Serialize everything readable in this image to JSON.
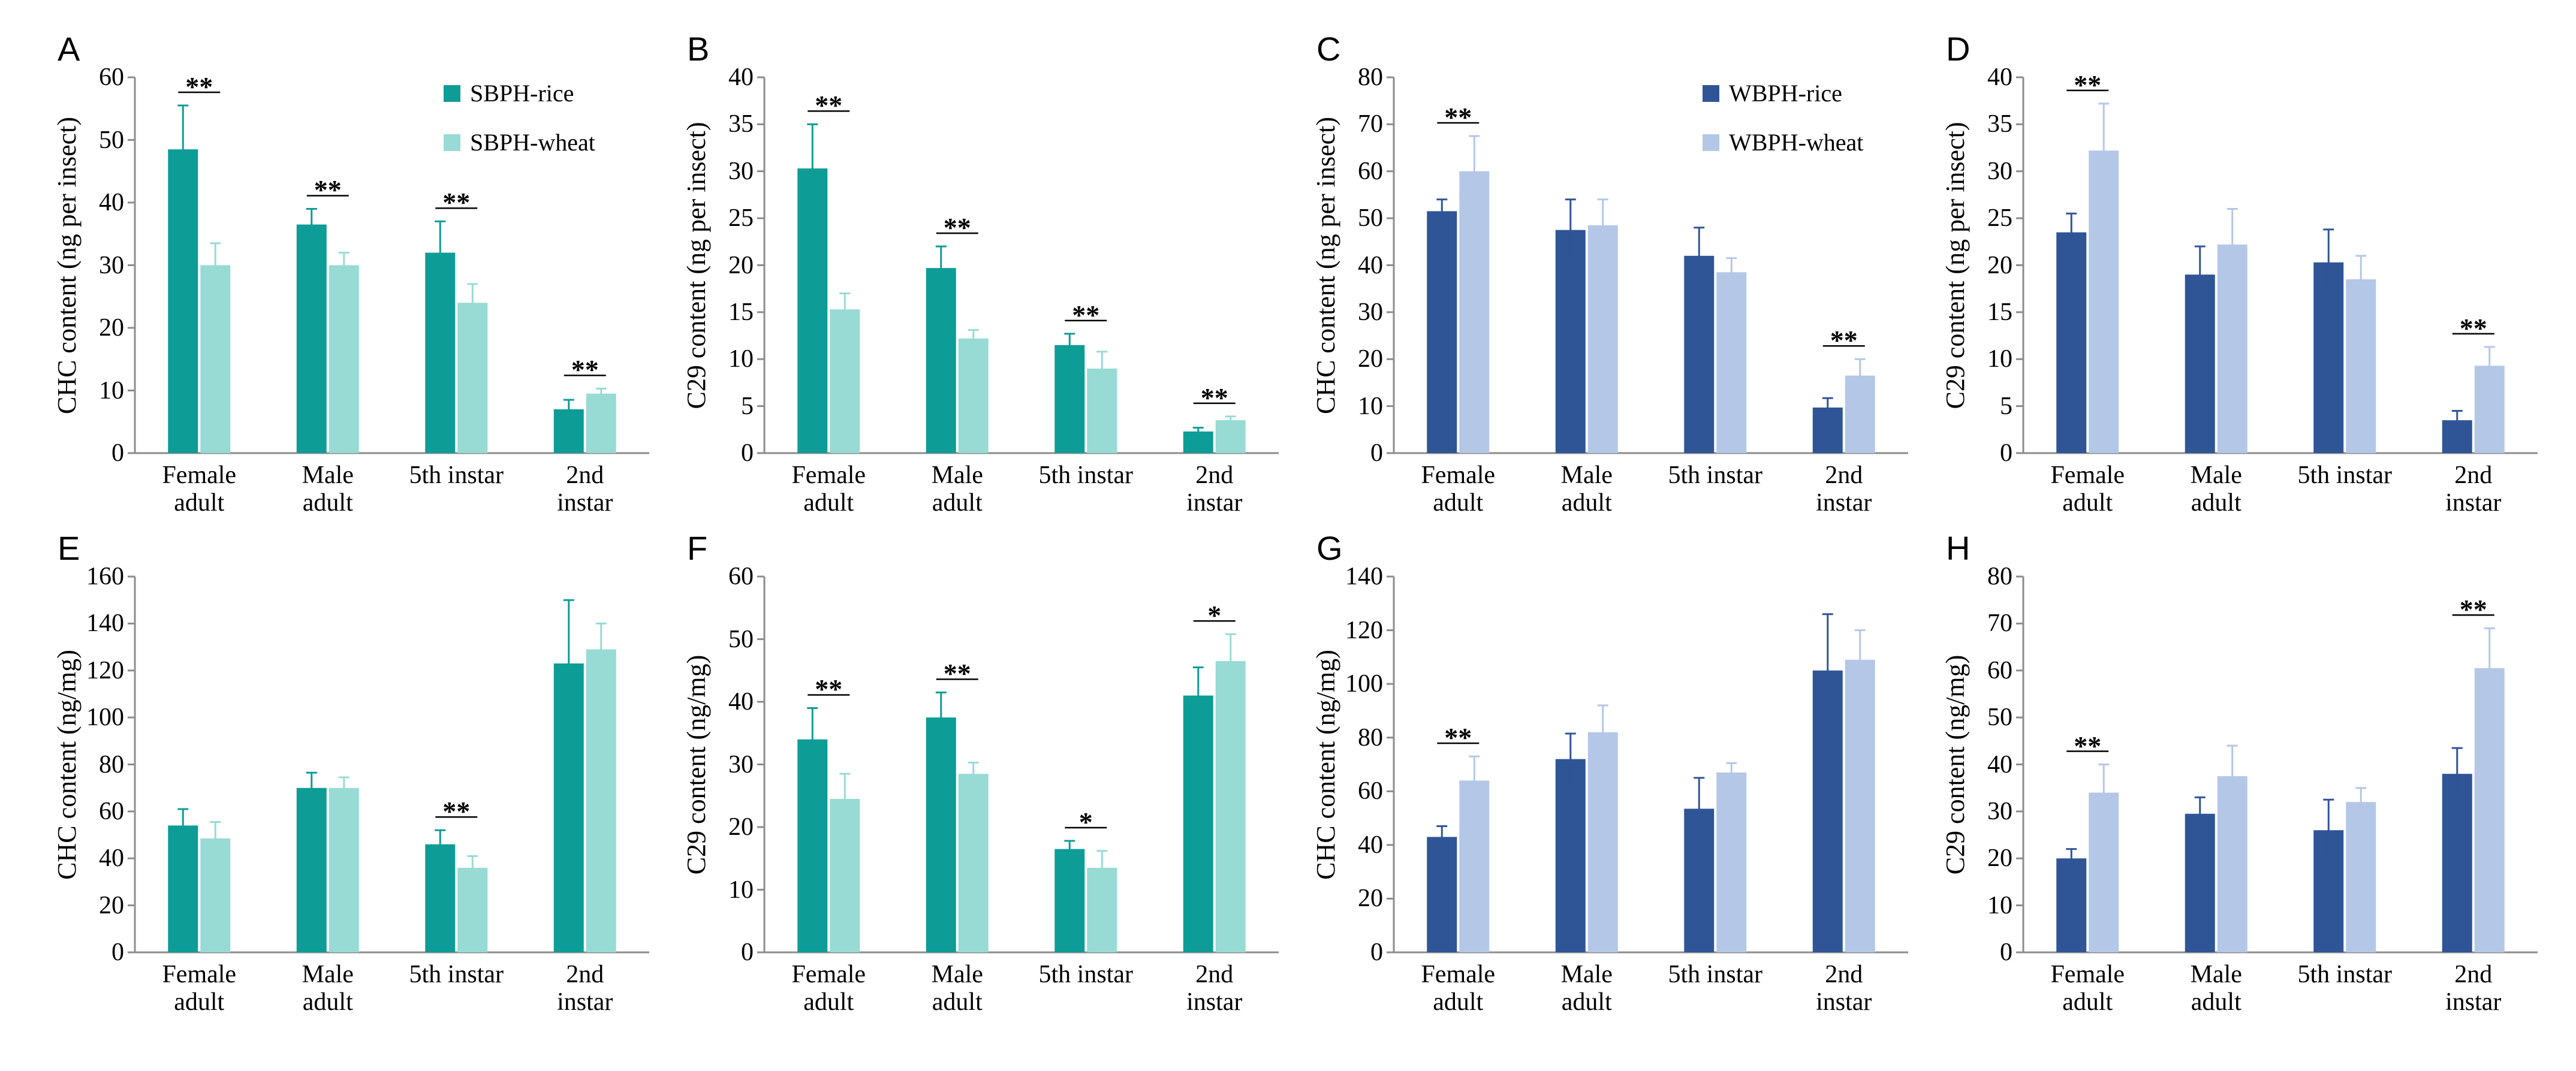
{
  "chart_data": [
    {
      "type": "bar",
      "label": "A",
      "ylabel": "CHC content (ng per insect)",
      "categories": [
        "Female\nadult",
        "Male\nadult",
        "5th instar",
        "2nd instar"
      ],
      "ylim": [
        0,
        60
      ],
      "yticks": [
        0,
        10,
        20,
        30,
        40,
        50,
        60
      ],
      "series": [
        {
          "name": "SBPH-rice",
          "color": "#0e9c97",
          "values": [
            48.5,
            36.5,
            32,
            7
          ],
          "errors": [
            7,
            2.5,
            5,
            1.5
          ]
        },
        {
          "name": "SBPH-wheat",
          "color": "#97dbd4",
          "values": [
            30,
            30,
            24,
            9.5
          ],
          "errors": [
            3.5,
            2,
            3,
            0.8
          ]
        }
      ],
      "annotations": [
        "**",
        "**",
        "**",
        "**"
      ]
    },
    {
      "type": "bar",
      "label": "B",
      "ylabel": "C29 content (ng per insect)",
      "categories": [
        "Female\nadult",
        "Male\nadult",
        "5th instar",
        "2nd instar"
      ],
      "ylim": [
        0,
        40
      ],
      "yticks": [
        0,
        5,
        10,
        15,
        20,
        25,
        30,
        35,
        40
      ],
      "series": [
        {
          "color": "#0e9c97",
          "values": [
            30.3,
            19.7,
            11.5,
            2.3
          ],
          "errors": [
            4.7,
            2.3,
            1.2,
            0.4
          ]
        },
        {
          "color": "#97dbd4",
          "values": [
            15.3,
            12.2,
            9,
            3.5
          ],
          "errors": [
            1.7,
            0.9,
            1.8,
            0.4
          ]
        }
      ],
      "annotations": [
        "**",
        "**",
        "**",
        "**"
      ]
    },
    {
      "type": "bar",
      "label": "C",
      "ylabel": "CHC content (ng per insect)",
      "categories": [
        "Female\nadult",
        "Male\nadult",
        "5th instar",
        "2nd instar"
      ],
      "ylim": [
        0,
        80
      ],
      "yticks": [
        0,
        10,
        20,
        30,
        40,
        50,
        60,
        70,
        80
      ],
      "series": [
        {
          "name": "WBPH-rice",
          "color": "#2f5597",
          "values": [
            51.5,
            47.5,
            42,
            9.7
          ],
          "errors": [
            2.5,
            6.5,
            6,
            2
          ]
        },
        {
          "name": "WBPH-wheat",
          "color": "#b4c7e7",
          "values": [
            60,
            48.5,
            38.5,
            16.5
          ],
          "errors": [
            7.5,
            5.5,
            3,
            3.5
          ]
        }
      ],
      "annotations": [
        "**",
        null,
        null,
        "**"
      ]
    },
    {
      "type": "bar",
      "label": "D",
      "ylabel": "C29 content (ng per insect)",
      "categories": [
        "Female\nadult",
        "Male\nadult",
        "5th instar",
        "2nd instar"
      ],
      "ylim": [
        0,
        40
      ],
      "yticks": [
        0,
        5,
        10,
        15,
        20,
        25,
        30,
        35,
        40
      ],
      "series": [
        {
          "color": "#2f5597",
          "values": [
            23.5,
            19,
            20.3,
            3.5
          ],
          "errors": [
            2,
            3,
            3.5,
            1
          ]
        },
        {
          "color": "#b4c7e7",
          "values": [
            32.2,
            22.2,
            18.5,
            9.3
          ],
          "errors": [
            5,
            3.8,
            2.5,
            2
          ]
        }
      ],
      "annotations": [
        "**",
        null,
        null,
        "**"
      ]
    },
    {
      "type": "bar",
      "label": "E",
      "ylabel": "CHC content (ng/mg)",
      "categories": [
        "Female\nadult",
        "Male\nadult",
        "5th instar",
        "2nd instar"
      ],
      "ylim": [
        0,
        160
      ],
      "yticks": [
        0,
        20,
        40,
        60,
        80,
        100,
        120,
        140,
        160
      ],
      "series": [
        {
          "color": "#0e9c97",
          "values": [
            54,
            70,
            46,
            123
          ],
          "errors": [
            7,
            6.5,
            6,
            27
          ]
        },
        {
          "color": "#97dbd4",
          "values": [
            48.5,
            70,
            36,
            129
          ],
          "errors": [
            7,
            4.5,
            5,
            11
          ]
        }
      ],
      "annotations": [
        null,
        null,
        "**",
        null
      ]
    },
    {
      "type": "bar",
      "label": "F",
      "ylabel": "C29 content (ng/mg)",
      "categories": [
        "Female\nadult",
        "Male\nadult",
        "5th instar",
        "2nd instar"
      ],
      "ylim": [
        0,
        60
      ],
      "yticks": [
        0,
        10,
        20,
        30,
        40,
        50,
        60
      ],
      "series": [
        {
          "color": "#0e9c97",
          "values": [
            34,
            37.5,
            16.5,
            41
          ],
          "errors": [
            5,
            4,
            1.3,
            4.5
          ]
        },
        {
          "color": "#97dbd4",
          "values": [
            24.5,
            28.5,
            13.5,
            46.5
          ],
          "errors": [
            4,
            1.8,
            2.7,
            4.3
          ]
        }
      ],
      "annotations": [
        "**",
        "**",
        "*",
        "*"
      ]
    },
    {
      "type": "bar",
      "label": "G",
      "ylabel": "CHC content (ng/mg)",
      "categories": [
        "Female\nadult",
        "Male\nadult",
        "5th instar",
        "2nd instar"
      ],
      "ylim": [
        0,
        140
      ],
      "yticks": [
        0,
        20,
        40,
        60,
        80,
        100,
        120,
        140
      ],
      "series": [
        {
          "color": "#2f5597",
          "values": [
            43,
            72,
            53.5,
            105
          ],
          "errors": [
            4,
            9.5,
            11.5,
            21
          ]
        },
        {
          "color": "#b4c7e7",
          "values": [
            64,
            82,
            67,
            109
          ],
          "errors": [
            9,
            10,
            3.5,
            11
          ]
        }
      ],
      "annotations": [
        "**",
        null,
        null,
        null
      ]
    },
    {
      "type": "bar",
      "label": "H",
      "ylabel": "C29 content (ng/mg)",
      "categories": [
        "Female\nadult",
        "Male\nadult",
        "5th instar",
        "2nd instar"
      ],
      "ylim": [
        0,
        80
      ],
      "yticks": [
        0,
        10,
        20,
        30,
        40,
        50,
        60,
        70,
        80
      ],
      "series": [
        {
          "color": "#2f5597",
          "values": [
            20,
            29.5,
            26,
            38
          ],
          "errors": [
            2,
            3.5,
            6.5,
            5.5
          ]
        },
        {
          "color": "#b4c7e7",
          "values": [
            34,
            37.5,
            32,
            60.5
          ],
          "errors": [
            6,
            6.5,
            3,
            8.5
          ]
        }
      ],
      "annotations": [
        "**",
        null,
        null,
        "**"
      ]
    }
  ]
}
